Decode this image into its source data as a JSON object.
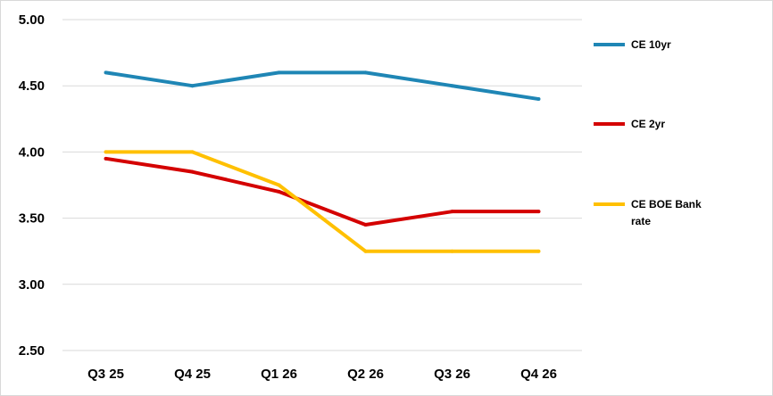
{
  "chart_data": {
    "type": "line",
    "title": "",
    "xlabel": "",
    "ylabel": "",
    "categories": [
      "Q3 25",
      "Q4 25",
      "Q1 26",
      "Q2 26",
      "Q3 26",
      "Q4 26"
    ],
    "ylim": [
      2.5,
      5.0
    ],
    "yticks": [
      "2.50",
      "3.00",
      "3.50",
      "4.00",
      "4.50",
      "5.00"
    ],
    "grid": true,
    "legend_position": "right",
    "series": [
      {
        "name": "CE 10yr",
        "color": "#1f86b5",
        "values": [
          4.6,
          4.5,
          4.6,
          4.6,
          4.5,
          4.4
        ]
      },
      {
        "name": "CE 2yr",
        "color": "#d40000",
        "values": [
          3.95,
          3.85,
          3.7,
          3.45,
          3.55,
          3.55
        ]
      },
      {
        "name": "CE BOE Bank rate",
        "color": "#ffc000",
        "values": [
          4.0,
          4.0,
          3.75,
          3.25,
          3.25,
          3.25
        ]
      }
    ]
  }
}
